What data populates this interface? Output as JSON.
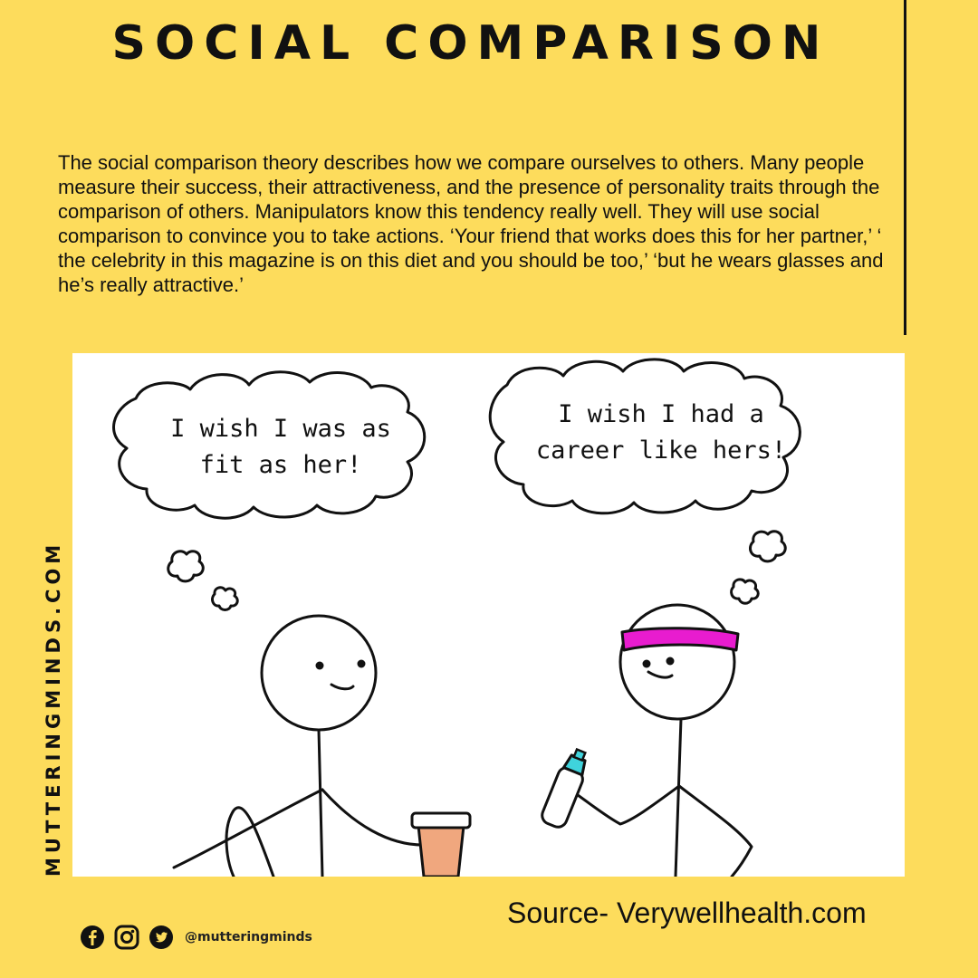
{
  "title": "SOCIAL COMPARISON",
  "body_text": "The social comparison theory describes how we compare ourselves to others. Many people measure their success, their attractiveness,  and the presence of personality traits through the comparison of others. Manipulators know this tendency really well. They will use social comparison to convince you to take actions. ‘Your friend that works does this for her partner,’ ‘ the celebrity in this magazine is on this diet and you should be too,’ ‘but he wears glasses and he’s really attractive.’",
  "side_label": "MUTTERINGMINDS.COM",
  "comic": {
    "left_bubble_line1": "I wish I was as",
    "left_bubble_line2": "fit as her!",
    "right_bubble_line1": "I wish I had a",
    "right_bubble_line2": "career like hers!"
  },
  "source": "Source- Verywellhealth.com",
  "social": {
    "icons": [
      "facebook-icon",
      "instagram-icon",
      "twitter-icon"
    ],
    "handle": "@mutteringminds"
  },
  "colors": {
    "background": "#fddc5c",
    "headband": "#e81ccf",
    "cup": "#f0a77e",
    "bottle_cap": "#3fd3dc"
  }
}
